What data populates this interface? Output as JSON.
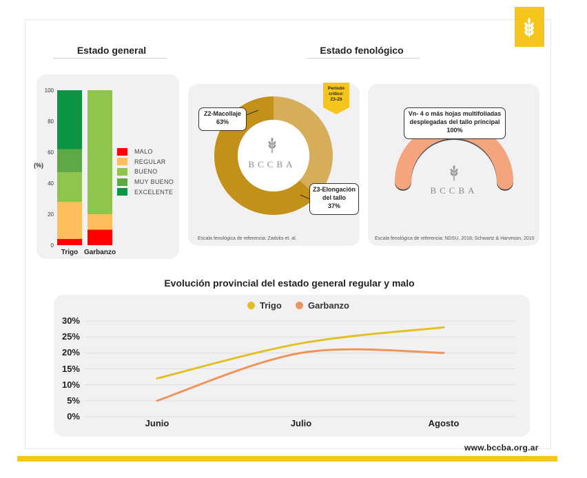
{
  "colors": {
    "brand_yellow": "#f5c51c",
    "malo": "#ff0000",
    "regular": "#ffbe5c",
    "bueno": "#8fc54d",
    "muy_bueno": "#5ea846",
    "excelente": "#0d9444",
    "macollaje": "#c3901a",
    "elongacion": "#d6ad58",
    "vn4": "#f5a57d",
    "trigo_line": "#e3c021",
    "garbanzo_line": "#f0955a"
  },
  "brand": {
    "logo_icon": "wheat-icon",
    "watermark": "BCCBA",
    "website": "www.bccba.org.ar"
  },
  "estado_general": {
    "title": "Estado general",
    "ylabel": "(%)",
    "legend": [
      "MALO",
      "REGULAR",
      "BUENO",
      "MUY BUENO",
      "EXCELENTE"
    ]
  },
  "estado_fenologico": {
    "title": "Estado fenológico",
    "periodo_critico": [
      "Período",
      "crítico:",
      "Z3-Z6"
    ],
    "trigo_donut": {
      "macollaje": [
        "Z2-Macollaje",
        "63%"
      ],
      "elongacion": [
        "Z3-Elongación",
        "del tallo",
        "37%"
      ],
      "note": "Escala fenológica de referencia: Zadoks et. al."
    },
    "garbanzo_gauge": {
      "label": [
        "Vn- 4 o más hojas multifoliadas",
        "desplegadas del tallo principal",
        "100%"
      ],
      "note": "Escala fenológica de referencia: NDSU, 2018; Schwartz & Harveson, 2010"
    }
  },
  "evolucion": {
    "title": "Evolución provincial del estado general regular y malo"
  },
  "chart_data": [
    {
      "type": "bar",
      "title": "Estado general",
      "ylabel": "(%)",
      "ylim": [
        0,
        100
      ],
      "yticks": [
        "0",
        "20",
        "40",
        "60",
        "80",
        "100"
      ],
      "categories": [
        "Trigo",
        "Garbanzo"
      ],
      "stacked": true,
      "series": [
        {
          "name": "MALO",
          "values": [
            4,
            10
          ]
        },
        {
          "name": "REGULAR",
          "values": [
            24,
            10
          ]
        },
        {
          "name": "BUENO",
          "values": [
            19,
            80
          ]
        },
        {
          "name": "MUY BUENO",
          "values": [
            15,
            0
          ]
        },
        {
          "name": "EXCELENTE",
          "values": [
            38,
            0
          ]
        }
      ],
      "legend_position": "right"
    },
    {
      "type": "pie",
      "subtype": "donut",
      "title": "Estado fenológico",
      "labels": [
        "Z2-Macollaje",
        "Z3-Elongación del tallo"
      ],
      "values": [
        63,
        37
      ]
    },
    {
      "type": "pie",
      "subtype": "gauge",
      "labels": [
        "Vn- 4 o más hojas multifoliadas desplegadas del tallo principal"
      ],
      "values": [
        100
      ]
    },
    {
      "type": "line",
      "title": "Evolución provincial del estado general regular y malo",
      "categories": [
        "Junio",
        "Julio",
        "Agosto"
      ],
      "yticks": [
        "0%",
        "5%",
        "10%",
        "15%",
        "20%",
        "25%",
        "30%"
      ],
      "ylim": [
        0,
        30
      ],
      "grid": true,
      "legend_position": "top",
      "series": [
        {
          "name": "Trigo",
          "values": [
            12,
            23,
            28
          ]
        },
        {
          "name": "Garbanzo",
          "values": [
            5,
            20,
            20
          ]
        }
      ]
    }
  ]
}
